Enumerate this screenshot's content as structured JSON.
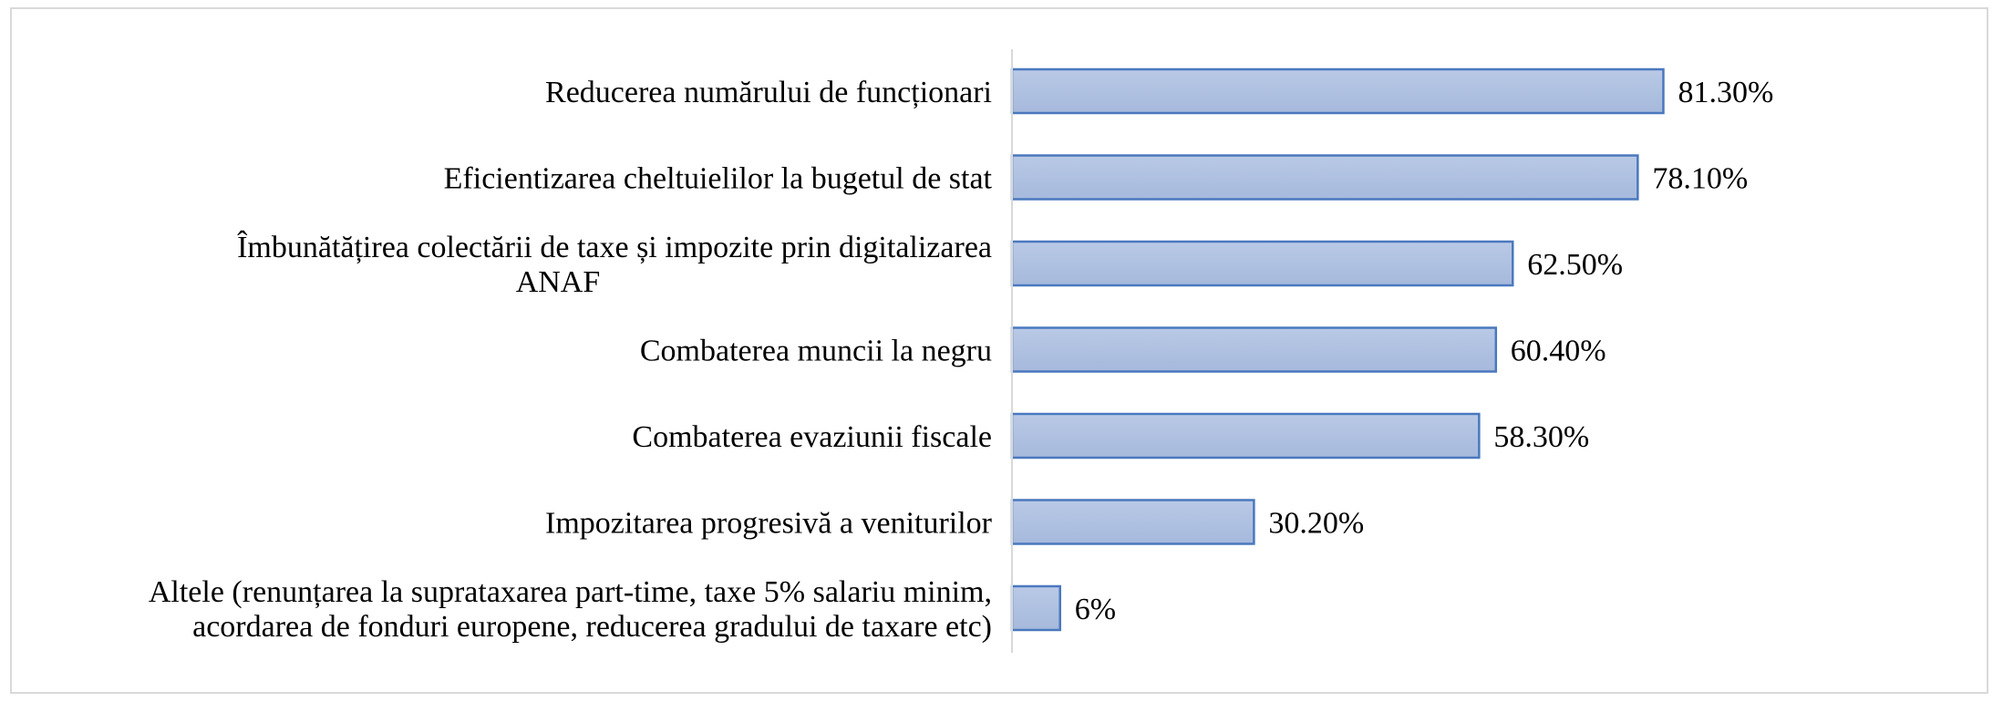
{
  "chart_data": {
    "type": "bar",
    "orientation": "horizontal",
    "categories": [
      [
        "Reducerea numărului de funcționari"
      ],
      [
        "Eficientizarea cheltuielilor la bugetul de stat"
      ],
      [
        "Îmbunătățirea colectării de taxe și impozite prin digitalizarea",
        "ANAF"
      ],
      [
        "Combaterea muncii la negru"
      ],
      [
        "Combaterea evaziunii fiscale"
      ],
      [
        "Impozitarea progresivă a veniturilor"
      ],
      [
        "Altele (renunțarea la suprataxarea part-time, taxe 5% salariu minim,",
        "acordarea de fonduri europene, reducerea gradului de taxare etc)"
      ]
    ],
    "values": [
      81.3,
      78.1,
      62.5,
      60.4,
      58.3,
      30.2,
      6
    ],
    "value_labels": [
      "81.30%",
      "78.10%",
      "62.50%",
      "60.40%",
      "58.30%",
      "30.20%",
      "6%"
    ],
    "xlim": [
      0,
      100
    ],
    "grid": false,
    "legend": "none",
    "bar_color": "#a6b9dc",
    "bar_color_light": "#b9c9e6",
    "bar_border": "#4a78be",
    "axis_color": "#d9d9d9"
  }
}
